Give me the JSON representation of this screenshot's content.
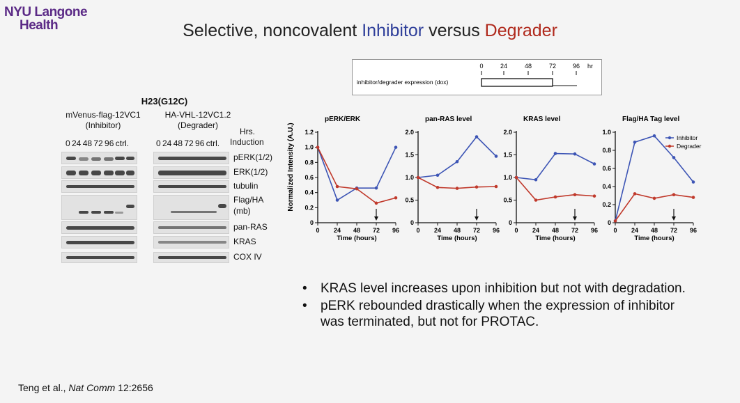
{
  "logo": {
    "line1": "NYU Langone",
    "line2": "Health"
  },
  "title": {
    "part1": "Selective, noncovalent ",
    "inhibitor": "Inhibitor",
    "part2": " versus ",
    "degrader": "Degrader"
  },
  "timeline": {
    "ticks": [
      "0",
      "24",
      "48",
      "72",
      "96"
    ],
    "unit": "hr",
    "label": "inhibitor/degrader expression (dox)"
  },
  "blot": {
    "cell_line": "H23(G12C)",
    "inhibitor_construct": "mVenus-flag-12VC1",
    "inhibitor_role": "(Inhibitor)",
    "degrader_construct": "HA-VHL-12VC1.2",
    "degrader_role": "(Degrader)",
    "hrs_label": "Hrs.",
    "induction_label": "Induction",
    "lanes_inhibitor": "0  24  48  72  96  ctrl.",
    "lanes_degrader": "0  24  48  72  96  ctrl.",
    "rows": [
      "pERK(1/2)",
      "ERK(1/2)",
      "tubulin",
      "Flag/HA",
      "(mb)",
      "pan-RAS",
      "KRAS",
      "COX IV"
    ]
  },
  "charts": {
    "ylabel": "Normalized Intensity (A.U.)",
    "xlabel": "Time (hours)",
    "legend": {
      "inhibitor": "Inhibitor",
      "degrader": "Degrader"
    },
    "colors": {
      "inhibitor": "#3d55b5",
      "degrader": "#c0392b"
    }
  },
  "chart_data": [
    {
      "type": "line",
      "title": "pERK/ERK",
      "x": [
        0,
        24,
        48,
        72,
        96
      ],
      "xlabel": "Time (hours)",
      "ylabel": "Normalized Intensity (A.U.)",
      "ylim": [
        0,
        1.2
      ],
      "yticks": [
        0,
        0.2,
        0.4,
        0.6,
        0.8,
        1.0,
        1.2
      ],
      "ytick_labels": [
        "0",
        "0.2",
        "0.4",
        "0.6",
        "0.8",
        "1.0",
        "1.2"
      ],
      "series": [
        {
          "name": "Inhibitor",
          "values": [
            1.0,
            0.3,
            0.46,
            0.46,
            1.0
          ]
        },
        {
          "name": "Degrader",
          "values": [
            1.0,
            0.48,
            0.45,
            0.26,
            0.33
          ]
        }
      ],
      "arrow_at": 72
    },
    {
      "type": "line",
      "title": "pan-RAS level",
      "x": [
        0,
        24,
        48,
        72,
        96
      ],
      "xlabel": "Time (hours)",
      "ylim": [
        0,
        2.0
      ],
      "yticks": [
        0,
        0.5,
        1.0,
        1.5,
        2.0
      ],
      "ytick_labels": [
        "0",
        "0.5",
        "1.0",
        "1.5",
        "2.0"
      ],
      "series": [
        {
          "name": "Inhibitor",
          "values": [
            1.0,
            1.05,
            1.35,
            1.9,
            1.47
          ]
        },
        {
          "name": "Degrader",
          "values": [
            1.0,
            0.78,
            0.76,
            0.79,
            0.8
          ]
        }
      ],
      "arrow_at": 72
    },
    {
      "type": "line",
      "title": "KRAS level",
      "x": [
        0,
        24,
        48,
        72,
        96
      ],
      "xlabel": "Time (hours)",
      "ylim": [
        0,
        2.0
      ],
      "yticks": [
        0,
        0.5,
        1.0,
        1.5,
        2.0
      ],
      "ytick_labels": [
        "0",
        "0.5",
        "1.0",
        "1.5",
        "2.0"
      ],
      "series": [
        {
          "name": "Inhibitor",
          "values": [
            1.0,
            0.95,
            1.53,
            1.52,
            1.3
          ]
        },
        {
          "name": "Degrader",
          "values": [
            1.0,
            0.5,
            0.57,
            0.62,
            0.59
          ]
        }
      ],
      "arrow_at": 72
    },
    {
      "type": "line",
      "title": "Flag/HA Tag level",
      "x": [
        0,
        24,
        48,
        72,
        96
      ],
      "xlabel": "Time (hours)",
      "ylim": [
        0,
        1.0
      ],
      "yticks": [
        0,
        0.2,
        0.4,
        0.6,
        0.8,
        1.0
      ],
      "ytick_labels": [
        "0",
        "0.2",
        "0.4",
        "0.6",
        "0.8",
        "1.0"
      ],
      "series": [
        {
          "name": "Inhibitor",
          "values": [
            0.02,
            0.89,
            0.96,
            0.72,
            0.45
          ]
        },
        {
          "name": "Degrader",
          "values": [
            0.02,
            0.32,
            0.27,
            0.31,
            0.28
          ]
        }
      ],
      "arrow_at": 72,
      "legend": "top-right"
    }
  ],
  "bullets": [
    "KRAS level increases upon inhibition but not with degradation.",
    "pERK rebounded drastically when the expression of inhibitor was terminated, but not for PROTAC."
  ],
  "citation": {
    "authors": "Teng et al., ",
    "journal": "Nat Comm",
    "ref": " 12:2656"
  }
}
